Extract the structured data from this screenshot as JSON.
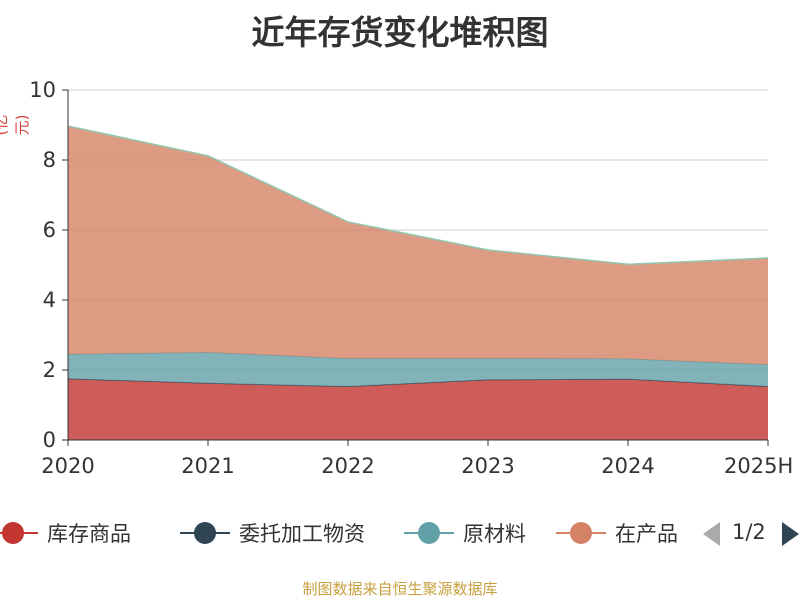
{
  "header": {
    "title": "近年存货变化堆积图",
    "unit": "(亿元)"
  },
  "chart_data": {
    "type": "area",
    "stacked": true,
    "categories": [
      "2020",
      "2021",
      "2022",
      "2023",
      "2024",
      "2025H"
    ],
    "ylim": [
      0,
      10
    ],
    "yticks": [
      0,
      2,
      4,
      6,
      8,
      10
    ],
    "grid": true,
    "series": [
      {
        "name": "库存商品",
        "color": "#c23531",
        "values": [
          1.75,
          1.62,
          1.53,
          1.72,
          1.74,
          1.53
        ]
      },
      {
        "name": "委托加工物资",
        "color": "#2f4554",
        "values": [
          0,
          0,
          0,
          0,
          0,
          0
        ]
      },
      {
        "name": "原材料",
        "color": "#61a0a8",
        "values": [
          0.7,
          0.88,
          0.8,
          0.61,
          0.58,
          0.62
        ]
      },
      {
        "name": "在产品",
        "color": "#d48265",
        "values": [
          6.52,
          5.62,
          3.9,
          3.1,
          2.7,
          3.05
        ]
      }
    ]
  },
  "legend": {
    "page_indicator": "1/2"
  },
  "footer": {
    "source": "制图数据来自恒生聚源数据库"
  }
}
